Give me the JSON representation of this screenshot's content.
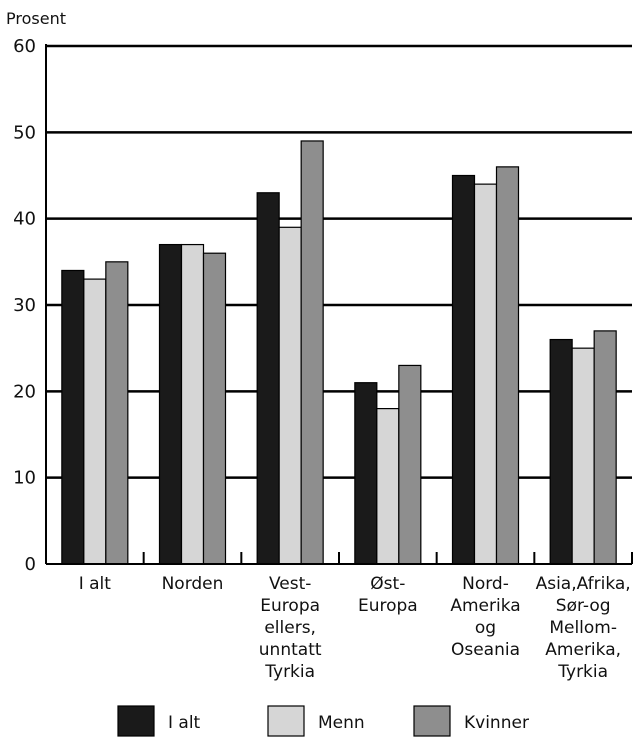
{
  "chart_data": {
    "type": "bar",
    "ylabel": "Prosent",
    "ylim": [
      0,
      60
    ],
    "yticks": [
      "0",
      "10",
      "20",
      "30",
      "40",
      "50",
      "60"
    ],
    "grid": true,
    "legend_position": "bottom",
    "categories": [
      [
        "I alt"
      ],
      [
        "Norden"
      ],
      [
        "Vest-",
        "Europa",
        "ellers,",
        "unntatt",
        "Tyrkia"
      ],
      [
        "Øst-",
        "Europa"
      ],
      [
        "Nord-",
        "Amerika",
        "og",
        "Oseania"
      ],
      [
        "Asia,Afrika,",
        "Sør-og",
        "Mellom-",
        "Amerika,",
        "Tyrkia"
      ]
    ],
    "series": [
      {
        "name": "I alt",
        "color": "#1a1a1a",
        "values": [
          34,
          37,
          43,
          21,
          45,
          26
        ]
      },
      {
        "name": "Menn",
        "color": "#d6d6d6",
        "values": [
          33,
          37,
          39,
          18,
          44,
          25
        ]
      },
      {
        "name": "Kvinner",
        "color": "#8e8e8e",
        "values": [
          35,
          36,
          49,
          23,
          46,
          27
        ]
      }
    ]
  }
}
